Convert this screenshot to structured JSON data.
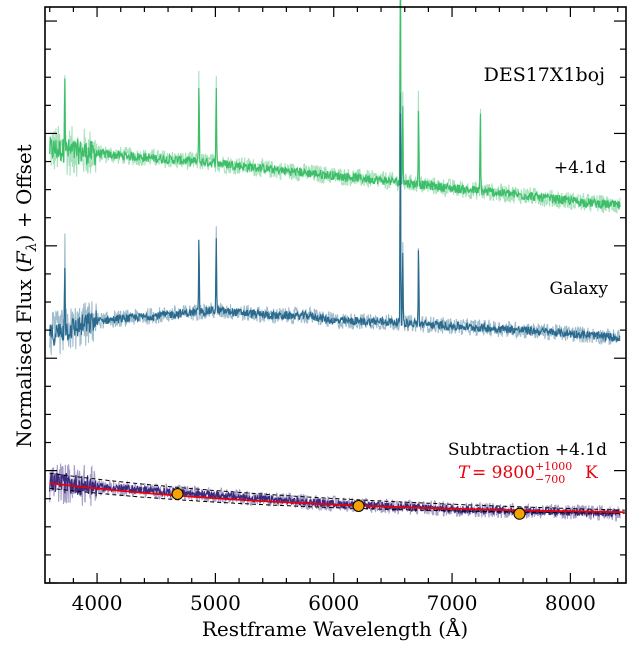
{
  "chart_data": {
    "type": "line",
    "title": "DES17X1boj",
    "xlabel": "Restframe Wavelength (Å)",
    "ylabel": "Normalised Flux (F_λ) + Offset",
    "xlim": [
      3560,
      8470
    ],
    "x_ticks": [
      4000,
      5000,
      6000,
      7000,
      8000
    ],
    "x_tick_labels": [
      "4000",
      "5000",
      "6000",
      "7000",
      "8000"
    ],
    "y_ticks_shown": false,
    "grid": false,
    "series": [
      {
        "name": "+4.1d",
        "color": "#3dbf6a",
        "offset_level": "top",
        "continuum": [
          [
            3600,
            0.66
          ],
          [
            4000,
            0.62
          ],
          [
            4500,
            0.58
          ],
          [
            5000,
            0.54
          ],
          [
            5500,
            0.48
          ],
          [
            6000,
            0.43
          ],
          [
            6500,
            0.38
          ],
          [
            7000,
            0.32
          ],
          [
            7500,
            0.27
          ],
          [
            8000,
            0.21
          ],
          [
            8400,
            0.17
          ]
        ],
        "emission_lines": [
          3727,
          4861,
          5007,
          6563,
          6583,
          6717,
          7239
        ]
      },
      {
        "name": "Galaxy",
        "color": "#2a6a8e",
        "offset_level": "middle",
        "continuum": [
          [
            3600,
            0.28
          ],
          [
            4000,
            0.42
          ],
          [
            4500,
            0.47
          ],
          [
            5000,
            0.52
          ],
          [
            5500,
            0.47
          ],
          [
            5800,
            0.47
          ],
          [
            6000,
            0.42
          ],
          [
            6500,
            0.41
          ],
          [
            7000,
            0.37
          ],
          [
            7500,
            0.34
          ],
          [
            8000,
            0.3
          ],
          [
            8400,
            0.26
          ]
        ],
        "emission_lines": [
          3727,
          4861,
          5007,
          6563,
          6583,
          6717
        ]
      },
      {
        "name": "Subtraction +4.1d",
        "color": "#3b2a7e",
        "offset_level": "bottom",
        "continuum": [
          [
            3600,
            0.8
          ],
          [
            4000,
            0.72
          ],
          [
            4500,
            0.65
          ],
          [
            5000,
            0.58
          ],
          [
            5500,
            0.5
          ],
          [
            6000,
            0.44
          ],
          [
            6500,
            0.39
          ],
          [
            7000,
            0.35
          ],
          [
            7500,
            0.32
          ],
          [
            8000,
            0.3
          ],
          [
            8400,
            0.28
          ]
        ]
      }
    ],
    "blackbody_fit": {
      "label": "T = 9800^{+1000}_{-700} K",
      "color": "#e8000b",
      "temperature_K": 9800,
      "err_plus_K": 1000,
      "err_minus_K": 700
    },
    "photometry_points": [
      {
        "x": 4680,
        "y": 0.6
      },
      {
        "x": 6210,
        "y": 0.4
      },
      {
        "x": 7570,
        "y": 0.27
      }
    ],
    "annotations": [
      "+4.1d",
      "Galaxy",
      "Subtraction +4.1d"
    ]
  }
}
